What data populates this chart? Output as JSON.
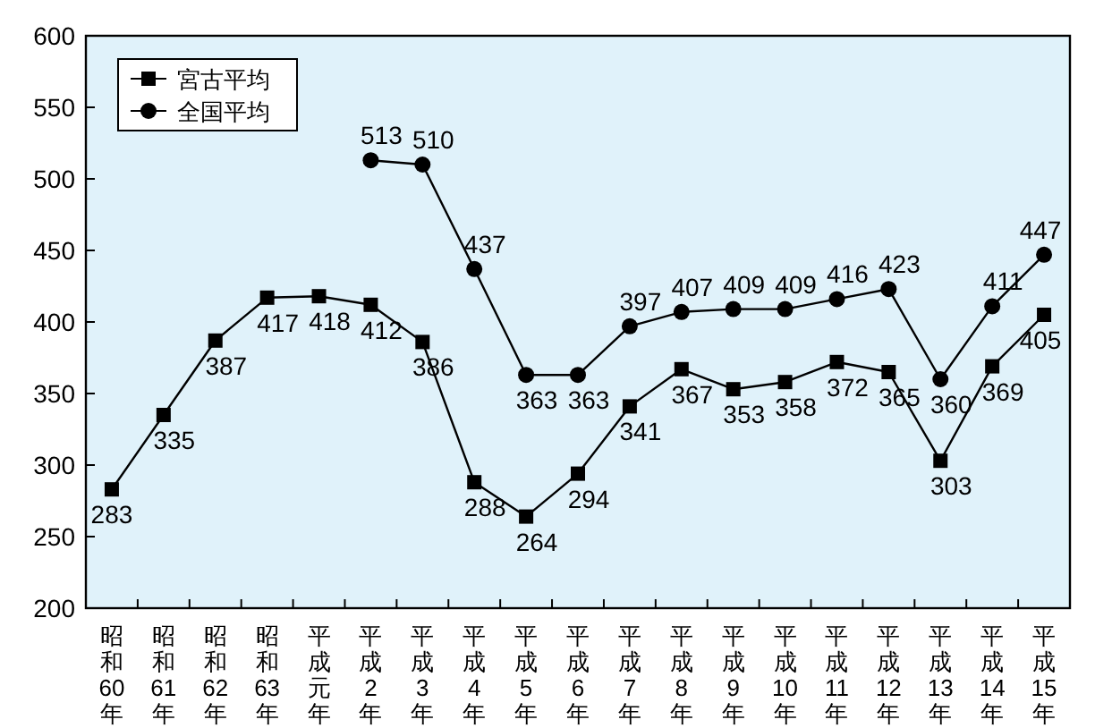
{
  "chart_data": {
    "type": "line",
    "categories": [
      "昭和60年",
      "昭和61年",
      "昭和62年",
      "昭和63年",
      "平成元年",
      "平成2年",
      "平成3年",
      "平成4年",
      "平成5年",
      "平成6年",
      "平成7年",
      "平成8年",
      "平成9年",
      "平成10年",
      "平成11年",
      "平成12年",
      "平成13年",
      "平成14年",
      "平成15年"
    ],
    "series": [
      {
        "name": "宮古平均",
        "color": "#000000",
        "marker": "square",
        "values": [
          283,
          335,
          387,
          417,
          418,
          412,
          386,
          288,
          264,
          294,
          341,
          367,
          353,
          358,
          372,
          365,
          303,
          369,
          405
        ]
      },
      {
        "name": "全国平均",
        "color": "#000000",
        "marker": "circle",
        "values": [
          null,
          null,
          null,
          null,
          null,
          513,
          510,
          437,
          363,
          363,
          397,
          407,
          409,
          409,
          416,
          423,
          360,
          411,
          447
        ]
      }
    ],
    "ylim": [
      200,
      600
    ],
    "yticks": [
      200,
      250,
      300,
      350,
      400,
      450,
      500,
      550,
      600
    ],
    "data_labels": true,
    "legend": "top left",
    "grid": false,
    "line_style": "solid"
  }
}
